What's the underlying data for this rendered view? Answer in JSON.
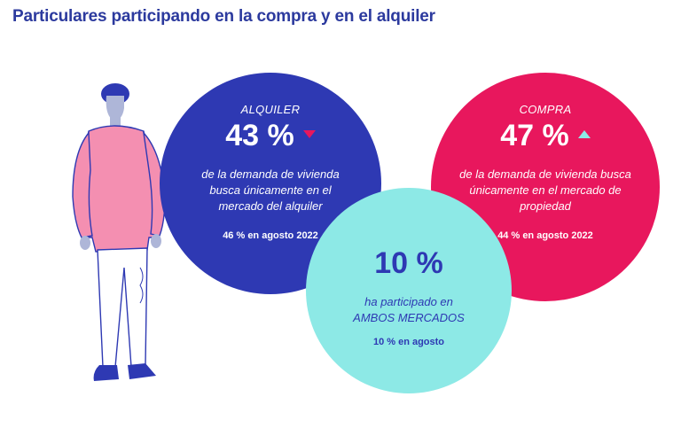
{
  "title": "Particulares participando en la compra y en el alquiler",
  "alquiler": {
    "label": "ALQUILER",
    "value": "43 %",
    "trend": "down",
    "desc": "de la demanda de vivienda busca únicamente en el mercado del alquiler",
    "previous": "46 % en agosto 2022",
    "color": "#2e39b3"
  },
  "compra": {
    "label": "COMPRA",
    "value": "47 %",
    "trend": "up",
    "desc": "de la demanda de vivienda busca únicamente en el mercado de propiedad",
    "previous": "44 % en agosto 2022",
    "color": "#e8175d"
  },
  "ambos": {
    "value": "10 %",
    "desc_line1": "ha participado en",
    "desc_line2": "AMBOS MERCADOS",
    "previous": "10 % en agosto",
    "color": "#8de9e6"
  },
  "illustration": {
    "icon": "person-standing-illustration",
    "sweater_color": "#f48fb1",
    "accent_color": "#2e39b3"
  }
}
